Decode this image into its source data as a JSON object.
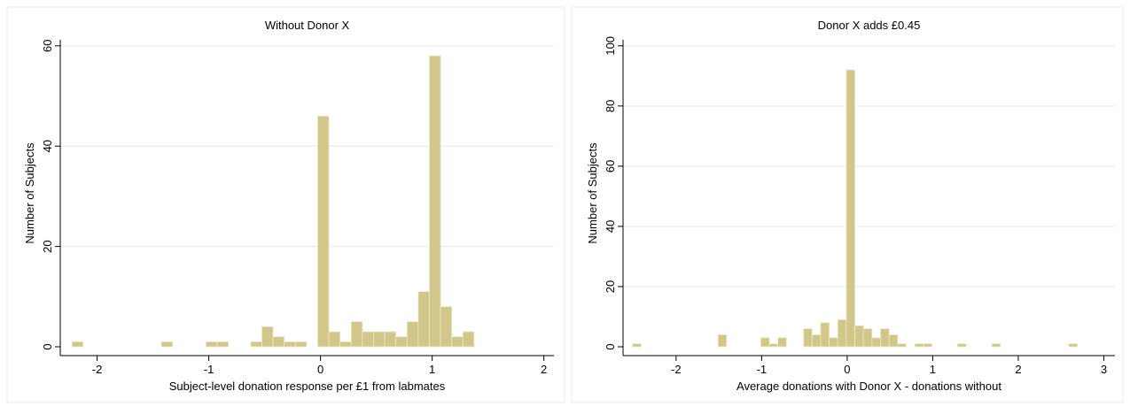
{
  "chart_data": [
    {
      "type": "histogram",
      "title": "Without Donor X",
      "xlabel": "Subject-level donation response per £1 from labmates",
      "ylabel": "Number of Subjects",
      "bins": [
        -2.225,
        -2.125,
        -2.025,
        -1.925,
        -1.825,
        -1.725,
        -1.625,
        -1.525,
        -1.425,
        -1.325,
        -1.225,
        -1.125,
        -1.025,
        -0.925,
        -0.825,
        -0.725,
        -0.625,
        -0.525,
        -0.425,
        -0.325,
        -0.225,
        -0.125,
        -0.025,
        0.075,
        0.175,
        0.275,
        0.375,
        0.475,
        0.575,
        0.675,
        0.775,
        0.875,
        0.975,
        1.075,
        1.175,
        1.275,
        1.375
      ],
      "values": [
        1,
        0,
        0,
        0,
        0,
        0,
        0,
        0,
        1,
        0,
        0,
        0,
        1,
        1,
        0,
        0,
        1,
        4,
        2,
        1,
        1,
        0,
        46,
        3,
        1,
        5,
        3,
        3,
        3,
        2,
        5,
        11,
        58,
        8,
        2,
        3
      ],
      "color": "#d2c78b",
      "xlim": [
        -2.33,
        2.09
      ],
      "ylim": [
        0,
        61.2
      ],
      "xticks": [
        -2,
        -1,
        0,
        1,
        2
      ],
      "yticks": [
        0,
        20,
        40,
        60
      ],
      "grid": true
    },
    {
      "type": "histogram",
      "title": "Donor X adds £0.45",
      "xlabel": "Average donations with Donor X - donations without",
      "ylabel": "Number of Subjects",
      "bins": [
        -2.51,
        -2.41,
        -2.31,
        -2.21,
        -2.11,
        -2.01,
        -1.91,
        -1.81,
        -1.71,
        -1.61,
        -1.51,
        -1.41,
        -1.31,
        -1.21,
        -1.11,
        -1.01,
        -0.91,
        -0.81,
        -0.71,
        -0.61,
        -0.51,
        -0.41,
        -0.31,
        -0.21,
        -0.11,
        -0.01,
        0.09,
        0.19,
        0.29,
        0.39,
        0.49,
        0.59,
        0.69,
        0.79,
        0.89,
        0.99,
        1.09,
        1.19,
        1.29,
        1.39,
        1.49,
        1.59,
        1.69,
        1.79,
        1.89,
        1.99,
        2.09,
        2.19,
        2.29,
        2.39,
        2.49,
        2.59,
        2.69
      ],
      "values": [
        1,
        0,
        0,
        0,
        0,
        0,
        0,
        0,
        0,
        0,
        4,
        0,
        0,
        0,
        0,
        3,
        1,
        3,
        0,
        0,
        6,
        4,
        8,
        3,
        9,
        92,
        7,
        6,
        3,
        6,
        4,
        1,
        0,
        1,
        1,
        0,
        0,
        0,
        1,
        0,
        0,
        0,
        1,
        0,
        0,
        0,
        0,
        0,
        0,
        0,
        0,
        1
      ],
      "color": "#d2c78b",
      "xlim": [
        -2.62,
        3.13
      ],
      "ylim": [
        0,
        102
      ],
      "xticks": [
        -2,
        -1,
        0,
        1,
        2,
        3
      ],
      "yticks": [
        0,
        20,
        40,
        60,
        80,
        100
      ],
      "grid": true
    }
  ]
}
